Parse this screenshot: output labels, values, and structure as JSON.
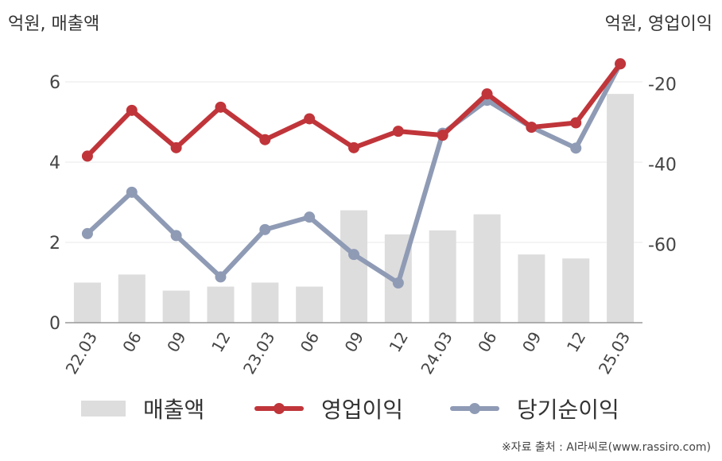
{
  "units": {
    "left": "억원, 매출액",
    "right": "억원, 영업이익"
  },
  "source": "※자료 출처 : AI라씨로(www.rassiro.com)",
  "colors": {
    "bar": "#dddddd",
    "operating": "#c0353a",
    "net": "#8f9bb5",
    "grid": "#e8e8e8",
    "axis": "#999999"
  },
  "chart_data": {
    "type": "bar+line",
    "categories": [
      "22.03",
      "06",
      "09",
      "12",
      "23.03",
      "06",
      "09",
      "12",
      "24.03",
      "06",
      "09",
      "12",
      "25.03"
    ],
    "y_left": {
      "ticks": [
        0,
        2,
        4,
        6
      ],
      "range": [
        0,
        6.0
      ]
    },
    "y_right": {
      "ticks": [
        -20,
        -40,
        -60
      ],
      "range": [
        -79.5,
        -19.5
      ]
    },
    "grid": true,
    "legend_position": "bottom",
    "series": [
      {
        "name": "매출액",
        "kind": "bar",
        "axis": "left",
        "values": [
          1.0,
          1.2,
          0.8,
          0.9,
          1.0,
          0.9,
          2.8,
          2.2,
          2.3,
          2.7,
          1.7,
          1.6,
          5.7
        ]
      },
      {
        "name": "영업이익",
        "kind": "line",
        "axis": "right",
        "values": [
          -38.0,
          -26.6,
          -35.9,
          -25.8,
          -33.9,
          -28.7,
          -35.9,
          -31.8,
          -32.8,
          -22.5,
          -30.8,
          -29.7,
          -15.0
        ]
      },
      {
        "name": "당기순이익",
        "kind": "line",
        "axis": "right",
        "values": [
          -57.3,
          -47.0,
          -57.8,
          -68.1,
          -56.3,
          -53.2,
          -62.5,
          -69.6,
          -32.3,
          -24.1,
          -30.8,
          -36.0,
          -15.0
        ]
      }
    ]
  }
}
